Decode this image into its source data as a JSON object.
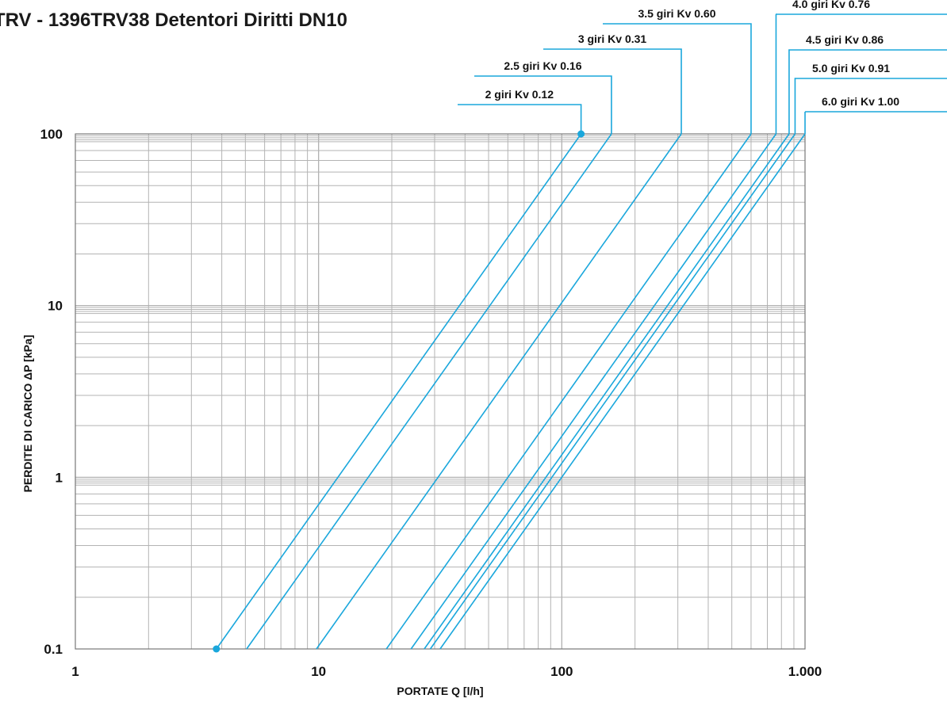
{
  "chart_data": {
    "type": "line",
    "title": "TRV - 1396TRV38 Detentori Diritti DN10",
    "xlabel": "PORTATE Q [l/h]",
    "ylabel": "PERDITE DI CARICO ΔP [kPa]",
    "x_scale": "log",
    "y_scale": "log",
    "xlim": [
      1,
      1000
    ],
    "ylim": [
      0.1,
      100
    ],
    "x_ticks": [
      {
        "value": 1,
        "label": "1"
      },
      {
        "value": 10,
        "label": "10"
      },
      {
        "value": 100,
        "label": "100"
      },
      {
        "value": 1000,
        "label": "1.000"
      }
    ],
    "y_ticks": [
      {
        "value": 0.1,
        "label": "0.1"
      },
      {
        "value": 1,
        "label": "1"
      },
      {
        "value": 10,
        "label": "10"
      },
      {
        "value": 100,
        "label": "100"
      }
    ],
    "grid": true,
    "line_color": "#1aa7dc",
    "series": [
      {
        "name": "2 giri Kv 0.12",
        "kv": 0.12,
        "x": [
          3.8,
          120
        ],
        "y": [
          0.1,
          100
        ]
      },
      {
        "name": "2.5 giri Kv 0.16",
        "kv": 0.16,
        "x": [
          5.06,
          160
        ],
        "y": [
          0.1,
          100
        ]
      },
      {
        "name": "3 giri Kv 0.31",
        "kv": 0.31,
        "x": [
          9.8,
          310
        ],
        "y": [
          0.1,
          100
        ]
      },
      {
        "name": "3.5 giri Kv 0.60",
        "kv": 0.6,
        "x": [
          19,
          600
        ],
        "y": [
          0.1,
          100
        ]
      },
      {
        "name": "4.0 giri Kv 0.76",
        "kv": 0.76,
        "x": [
          24,
          760
        ],
        "y": [
          0.1,
          100
        ]
      },
      {
        "name": "4.5 giri Kv 0.86",
        "kv": 0.86,
        "x": [
          27.2,
          860
        ],
        "y": [
          0.1,
          100
        ]
      },
      {
        "name": "5.0 giri Kv 0.91",
        "kv": 0.91,
        "x": [
          28.8,
          910
        ],
        "y": [
          0.1,
          100
        ]
      },
      {
        "name": "6.0 giri Kv 1.00",
        "kv": 1.0,
        "x": [
          31.6,
          1000
        ],
        "y": [
          0.1,
          100
        ]
      }
    ],
    "markers": [
      {
        "x": 3.8,
        "y": 0.1
      },
      {
        "x": 120,
        "y": 100
      }
    ]
  }
}
